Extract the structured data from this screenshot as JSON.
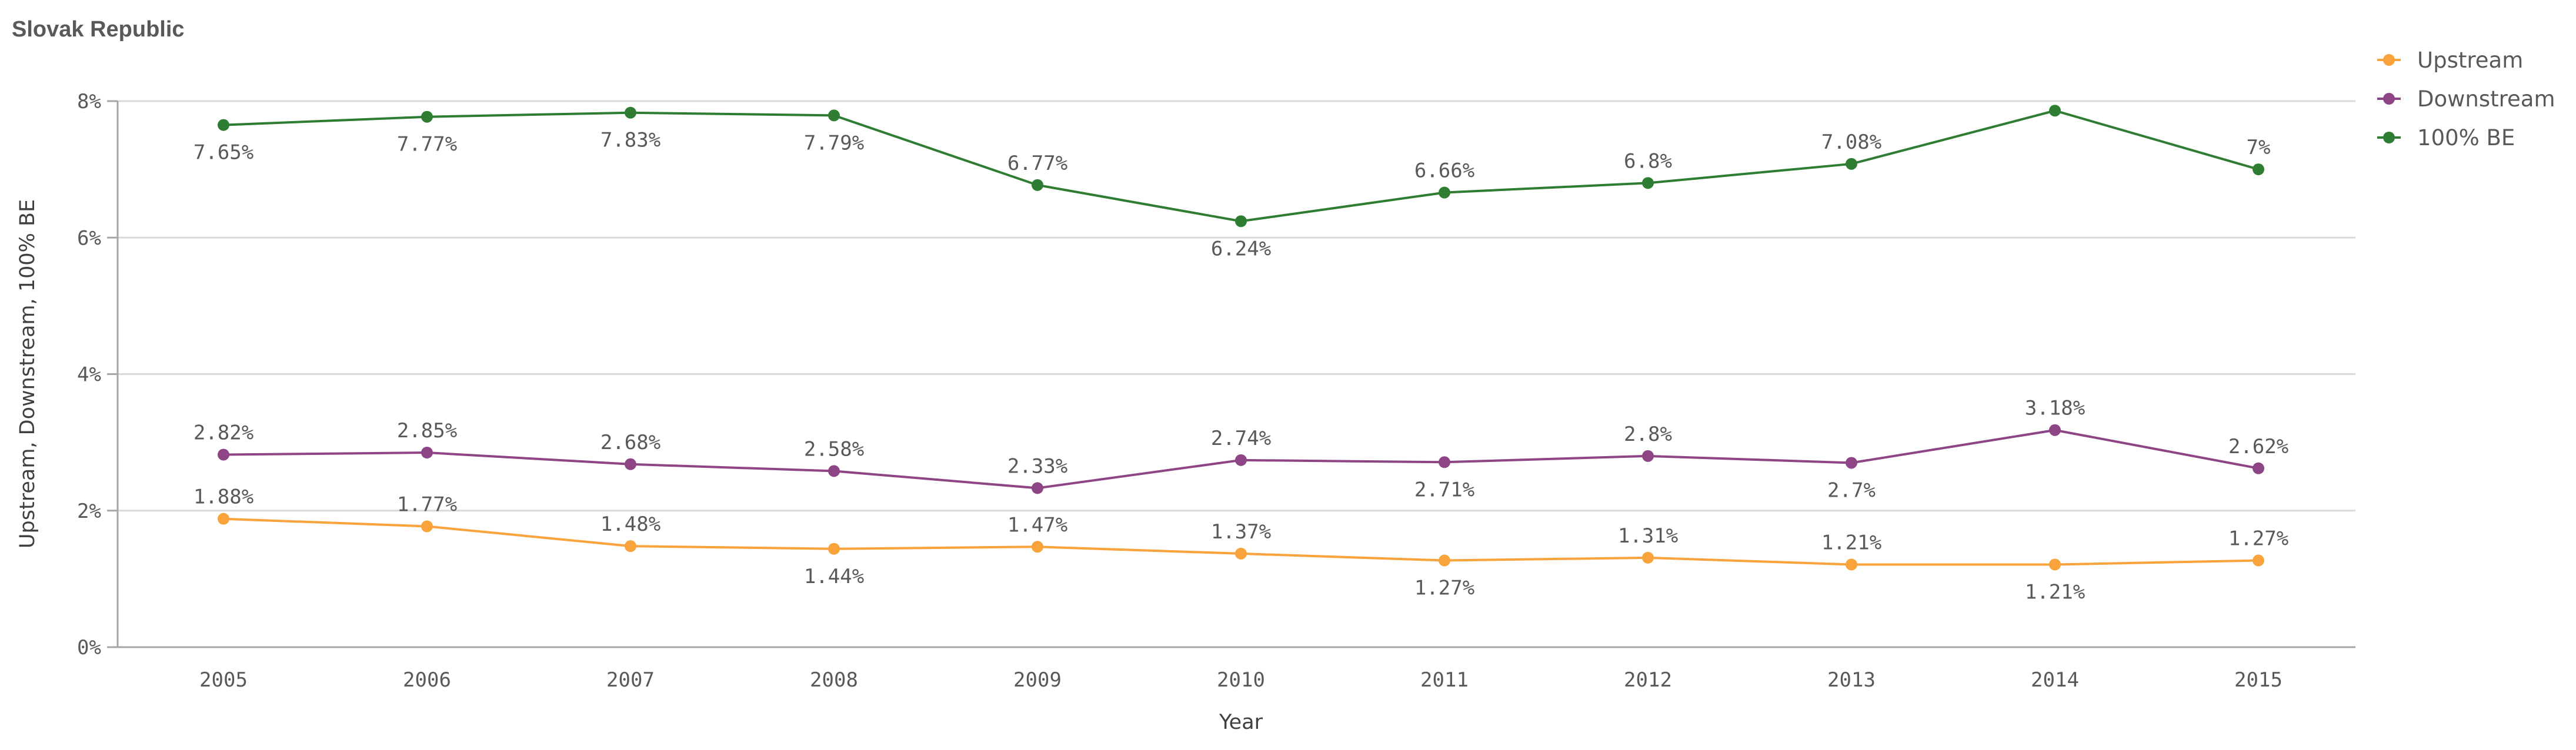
{
  "chart_data": {
    "type": "line",
    "title": "Slovak Republic",
    "xlabel": "Year",
    "ylabel": "Upstream, Downstream, 100% BE",
    "ylim": [
      0,
      8
    ],
    "yticks": [
      0,
      2,
      4,
      6,
      8
    ],
    "ytick_labels": [
      "0%",
      "2%",
      "4%",
      "6%",
      "8%"
    ],
    "grid": true,
    "legend_position": "top-right",
    "categories": [
      "2005",
      "2006",
      "2007",
      "2008",
      "2009",
      "2010",
      "2011",
      "2012",
      "2013",
      "2014",
      "2015"
    ],
    "series": [
      {
        "name": "Upstream",
        "color": "#f8a33c",
        "values": [
          1.88,
          1.77,
          1.48,
          1.44,
          1.47,
          1.37,
          1.27,
          1.31,
          1.21,
          1.21,
          1.27
        ],
        "labels": [
          "1.88%",
          "1.77%",
          "1.48%",
          "1.44%",
          "1.47%",
          "1.37%",
          "1.27%",
          "1.31%",
          "1.21%",
          "1.21%",
          "1.27%"
        ],
        "label_pos": [
          "above",
          "above",
          "above",
          "below",
          "above",
          "above",
          "below",
          "above",
          "above",
          "below",
          "above"
        ]
      },
      {
        "name": "Downstream",
        "color": "#8e4585",
        "values": [
          2.82,
          2.85,
          2.68,
          2.58,
          2.33,
          2.74,
          2.71,
          2.8,
          2.7,
          3.18,
          2.62
        ],
        "labels": [
          "2.82%",
          "2.85%",
          "2.68%",
          "2.58%",
          "2.33%",
          "2.74%",
          "2.71%",
          "2.8%",
          "2.7%",
          "3.18%",
          "2.62%"
        ],
        "label_pos": [
          "above",
          "above",
          "above",
          "above",
          "above",
          "above",
          "below",
          "above",
          "below",
          "above",
          "above"
        ]
      },
      {
        "name": "100% BE",
        "color": "#2e7d32",
        "values": [
          7.65,
          7.77,
          7.83,
          7.79,
          6.77,
          6.24,
          6.66,
          6.8,
          7.08,
          7.86,
          7.0
        ],
        "labels": [
          "7.65%",
          "7.77%",
          "7.83%",
          "7.79%",
          "6.77%",
          "6.24%",
          "6.66%",
          "6.8%",
          "7.08%",
          "",
          "7%"
        ],
        "label_pos": [
          "below",
          "below",
          "below",
          "below",
          "above",
          "below",
          "above",
          "above",
          "above",
          "none",
          "above"
        ]
      }
    ]
  }
}
